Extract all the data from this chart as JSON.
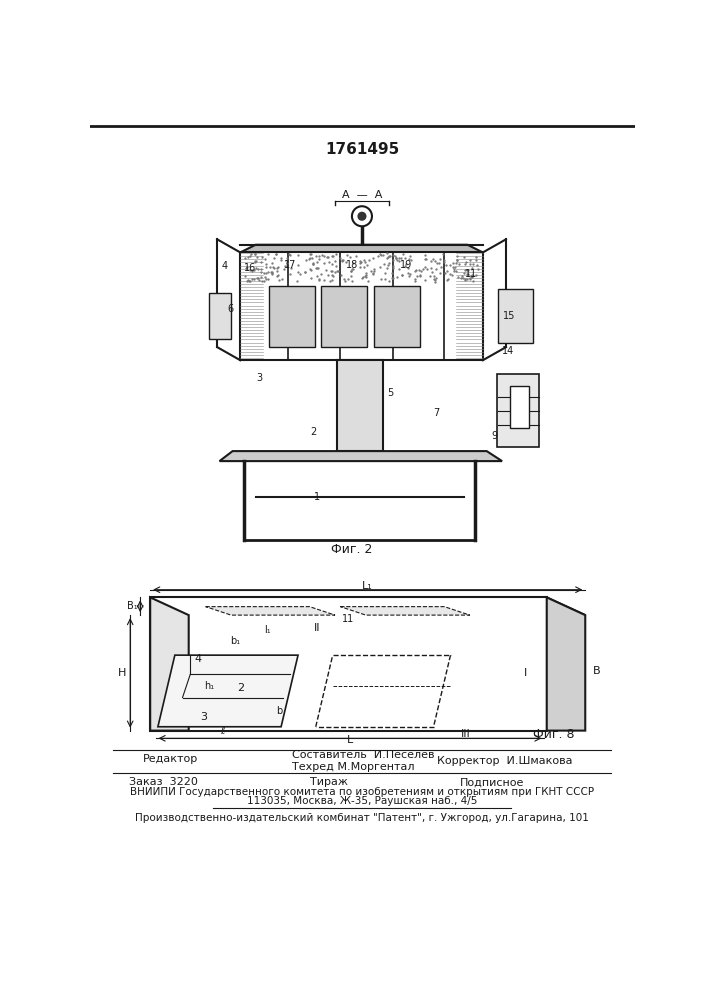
{
  "patent_number": "1761495",
  "fig2_label": "Фиг. 2",
  "fig8_label": "Фиг. 8",
  "editor_line": "Редактор",
  "composer_line": "Составитель  И.Песелев",
  "techred_line": "Техред М.Моргентал",
  "corrector_line": "Корректор  И.Шмакова",
  "order_line": "Заказ  3220",
  "tirazh_line": "Тираж",
  "podpisnoe_line": "Подписное",
  "vniiipi_line1": "ВНИИПИ Государственного комитета по изобретениям и открытиям при ГКНТ СССР",
  "vniiipi_line2": "113035, Москва, Ж-35, Раушская наб., 4/5",
  "factory_line": "Производственно-издательский комбинат \"Патент\", г. Ужгород, ул.Гагарина, 101",
  "bg_color": "#ffffff",
  "line_color": "#1a1a1a",
  "text_color": "#1a1a1a"
}
